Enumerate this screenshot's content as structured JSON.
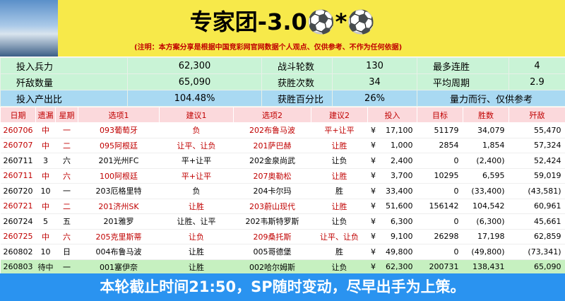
{
  "header": {
    "title": "专家团-3.0⚽*⚽",
    "note": "(注明：本方案分享是根据中国竞彩网官网数据个人观点、仅供参考、不作为任何依据)"
  },
  "summary": {
    "rows": [
      [
        "投入兵力",
        "62,300",
        "战斗轮数",
        "130",
        "最多连胜",
        "4"
      ],
      [
        "歼敌数量",
        "65,090",
        "获胜次数",
        "34",
        "平均周期",
        "2.9"
      ],
      [
        "投入产出比",
        "104.48%",
        "获胜百分比",
        "26%",
        "量力而行、仅供参考"
      ]
    ]
  },
  "table": {
    "columns": [
      "日期",
      "遗漏",
      "星期",
      "选项1",
      "建议1",
      "选项2",
      "建议2",
      "投入",
      "目标",
      "胜数",
      "歼敌"
    ],
    "rows": [
      [
        "260706",
        "中",
        "一",
        "093葡萄牙",
        "负",
        "202布鲁马波",
        "平+让平",
        "¥",
        "17,100",
        "51179",
        "34,079",
        "55,470"
      ],
      [
        "260707",
        "中",
        "二",
        "095阿根廷",
        "让平、让负",
        "201萨巴赫",
        "让胜",
        "¥",
        "1,000",
        "2854",
        "1,854",
        "57,324"
      ],
      [
        "260711",
        "3",
        "六",
        "201光州FC",
        "平+让平",
        "202金泉尚武",
        "让负",
        "¥",
        "2,400",
        "0",
        "(2,400)",
        "52,424"
      ],
      [
        "260711",
        "中",
        "六",
        "100阿根廷",
        "平+让平",
        "207奥勒松",
        "让胜",
        "¥",
        "3,700",
        "10295",
        "6,595",
        "59,019"
      ],
      [
        "260720",
        "10",
        "一",
        "203厄格里特",
        "负",
        "204卡尔玛",
        "胜",
        "¥",
        "33,400",
        "0",
        "(33,400)",
        "(43,581)"
      ],
      [
        "260721",
        "中",
        "二",
        "201济州SK",
        "让胜",
        "203蔚山现代",
        "让胜",
        "¥",
        "51,600",
        "156142",
        "104,542",
        "60,961"
      ],
      [
        "260724",
        "5",
        "五",
        "201雅罗",
        "让胜、让平",
        "202韦斯特罗斯",
        "让负",
        "¥",
        "6,300",
        "0",
        "(6,300)",
        "45,661"
      ],
      [
        "260725",
        "中",
        "六",
        "205克里斯蒂",
        "让负",
        "209桑托斯",
        "让平、让负",
        "¥",
        "9,100",
        "26298",
        "17,198",
        "62,859"
      ],
      [
        "260802",
        "10",
        "日",
        "004布鲁马波",
        "让胜",
        "005哥德堡",
        "胜",
        "¥",
        "49,800",
        "0",
        "(49,800)",
        "(73,341)"
      ],
      [
        "260803",
        "待中",
        "一",
        "001塞伊奈",
        "让胜",
        "002哈尔姆斯",
        "让负",
        "¥",
        "62,300",
        "200731",
        "138,431",
        "65,090"
      ]
    ]
  },
  "footer": {
    "text": "本轮截止时间21:50，SP随时变动，尽早出手为上策。"
  }
}
